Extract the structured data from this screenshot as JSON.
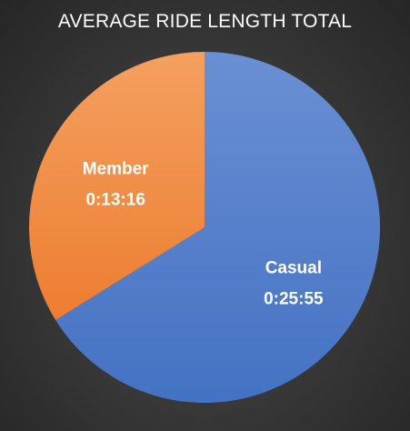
{
  "chart_data": {
    "type": "pie",
    "title": "AVERAGE RIDE LENGTH TOTAL",
    "categories": [
      "Casual",
      "Member"
    ],
    "values": [
      1555,
      796
    ],
    "value_labels": [
      "0:25:55",
      "0:13:16"
    ],
    "colors": [
      "#4472C4",
      "#ED7D31"
    ],
    "colors_light": [
      "#6A8FD3",
      "#F4A060"
    ],
    "legend": "none"
  }
}
